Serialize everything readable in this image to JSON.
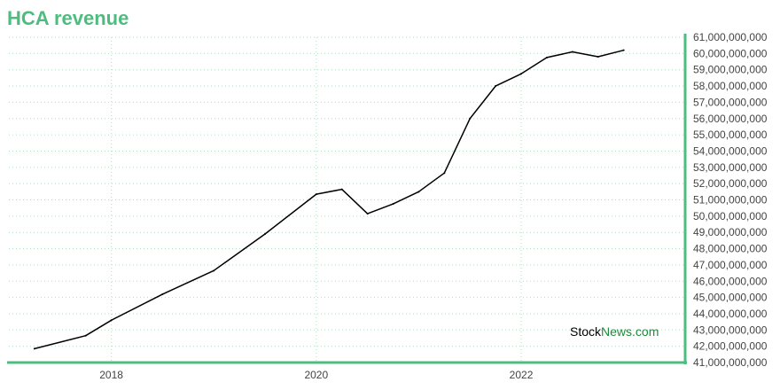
{
  "title": "HCA revenue",
  "watermark": {
    "part1": "Stock",
    "part2": "News",
    "part3": ".com"
  },
  "colors": {
    "title": "#4dbd7f",
    "axis": "#4dbd7f",
    "grid": "#b8dcc6",
    "line": "#000000",
    "watermark_dark": "#000000",
    "watermark_green": "#1e8a3c"
  },
  "chart_data": {
    "type": "line",
    "title": "HCA revenue",
    "xlabel": "",
    "ylabel": "",
    "grid": true,
    "y_axis_side": "right",
    "xlim": [
      2017.0,
      2023.6
    ],
    "ylim": [
      41000000000,
      61000000000
    ],
    "x_ticks": [
      2018,
      2020,
      2022
    ],
    "x_tick_labels": [
      "2018",
      "2020",
      "2022"
    ],
    "y_ticks": [
      41000000000,
      42000000000,
      43000000000,
      44000000000,
      45000000000,
      46000000000,
      47000000000,
      48000000000,
      49000000000,
      50000000000,
      51000000000,
      52000000000,
      53000000000,
      54000000000,
      55000000000,
      56000000000,
      57000000000,
      58000000000,
      59000000000,
      60000000000,
      61000000000
    ],
    "y_tick_labels": [
      "41,000,000,000",
      "42,000,000,000",
      "43,000,000,000",
      "44,000,000,000",
      "45,000,000,000",
      "46,000,000,000",
      "47,000,000,000",
      "48,000,000,000",
      "49,000,000,000",
      "50,000,000,000",
      "51,000,000,000",
      "52,000,000,000",
      "53,000,000,000",
      "54,000,000,000",
      "55,000,000,000",
      "56,000,000,000",
      "57,000,000,000",
      "58,000,000,000",
      "59,000,000,000",
      "60,000,000,000",
      "61,000,000,000"
    ],
    "series": [
      {
        "x": [
          2017.25,
          2017.75,
          2018.0,
          2018.5,
          2019.0,
          2019.5,
          2020.0,
          2020.25,
          2020.5,
          2020.75,
          2021.0,
          2021.25,
          2021.5,
          2021.75,
          2022.0,
          2022.25,
          2022.5,
          2022.75,
          2023.0
        ],
        "y": [
          41850000000,
          42650000000,
          43600000000,
          45200000000,
          46650000000,
          48900000000,
          51350000000,
          51650000000,
          50150000000,
          50750000000,
          51500000000,
          52650000000,
          56000000000,
          58000000000,
          58750000000,
          59750000000,
          60100000000,
          59800000000,
          60200000000
        ]
      }
    ]
  }
}
